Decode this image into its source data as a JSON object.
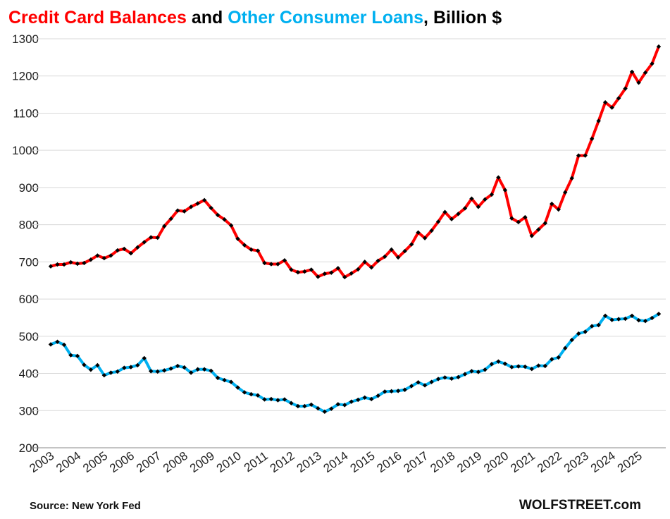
{
  "chart_data": {
    "type": "line",
    "title_parts": [
      " and ",
      ", Billion $"
    ],
    "categories": [
      "2003",
      null,
      null,
      null,
      "2004",
      null,
      null,
      null,
      "2005",
      null,
      null,
      null,
      "2006",
      null,
      null,
      null,
      "2007",
      null,
      null,
      null,
      "2008",
      null,
      null,
      null,
      "2009",
      null,
      null,
      null,
      "2010",
      null,
      null,
      null,
      "2011",
      null,
      null,
      null,
      "2012",
      null,
      null,
      null,
      "2013",
      null,
      null,
      null,
      "2014",
      null,
      null,
      null,
      "2015",
      null,
      null,
      null,
      "2016",
      null,
      null,
      null,
      "2017",
      null,
      null,
      null,
      "2018",
      null,
      null,
      null,
      "2019",
      null,
      null,
      null,
      "2020",
      null,
      null,
      null,
      "2021",
      null,
      null,
      null,
      "2022",
      null,
      null,
      null,
      "2023",
      null,
      null,
      null,
      "2024",
      null,
      null,
      null,
      "2025",
      null,
      null,
      null
    ],
    "series": [
      {
        "name": "Credit Card Balances",
        "color": "#ff0000",
        "values": [
          688,
          693,
          693,
          699,
          695,
          697,
          706,
          717,
          710,
          717,
          731,
          735,
          723,
          739,
          753,
          766,
          765,
          796,
          816,
          838,
          836,
          848,
          857,
          866,
          845,
          826,
          814,
          798,
          762,
          745,
          733,
          730,
          697,
          694,
          694,
          704,
          679,
          672,
          674,
          679,
          660,
          668,
          671,
          683,
          659,
          669,
          680,
          700,
          685,
          703,
          714,
          733,
          712,
          729,
          747,
          779,
          764,
          784,
          808,
          834,
          815,
          829,
          844,
          870,
          848,
          868,
          881,
          927,
          893,
          817,
          807,
          820,
          770,
          787,
          804,
          856,
          841,
          887,
          925,
          986,
          986,
          1031,
          1079,
          1129,
          1115,
          1140,
          1166,
          1211,
          1182,
          1209,
          1233,
          1279
        ]
      },
      {
        "name": "Other Consumer Loans",
        "color": "#00b0f0",
        "values": [
          478,
          485,
          477,
          449,
          447,
          423,
          410,
          422,
          395,
          402,
          405,
          415,
          417,
          422,
          441,
          406,
          405,
          408,
          413,
          420,
          416,
          402,
          411,
          411,
          407,
          388,
          382,
          377,
          362,
          349,
          344,
          341,
          330,
          331,
          328,
          330,
          320,
          312,
          312,
          316,
          306,
          297,
          305,
          317,
          315,
          324,
          329,
          335,
          331,
          340,
          351,
          352,
          353,
          356,
          366,
          376,
          368,
          377,
          385,
          389,
          386,
          390,
          398,
          406,
          404,
          410,
          425,
          432,
          426,
          417,
          419,
          418,
          412,
          421,
          420,
          438,
          443,
          468,
          490,
          507,
          512,
          527,
          530,
          555,
          544,
          546,
          547,
          555,
          543,
          541,
          549,
          560
        ]
      }
    ],
    "marker_color": "#000000",
    "ylim": [
      200,
      1300
    ],
    "yticks": [
      200,
      300,
      400,
      500,
      600,
      700,
      800,
      900,
      1000,
      1100,
      1200,
      1300
    ],
    "grid": true,
    "source": "Source: New York Fed",
    "credit": "WOLFSTREET.com"
  }
}
